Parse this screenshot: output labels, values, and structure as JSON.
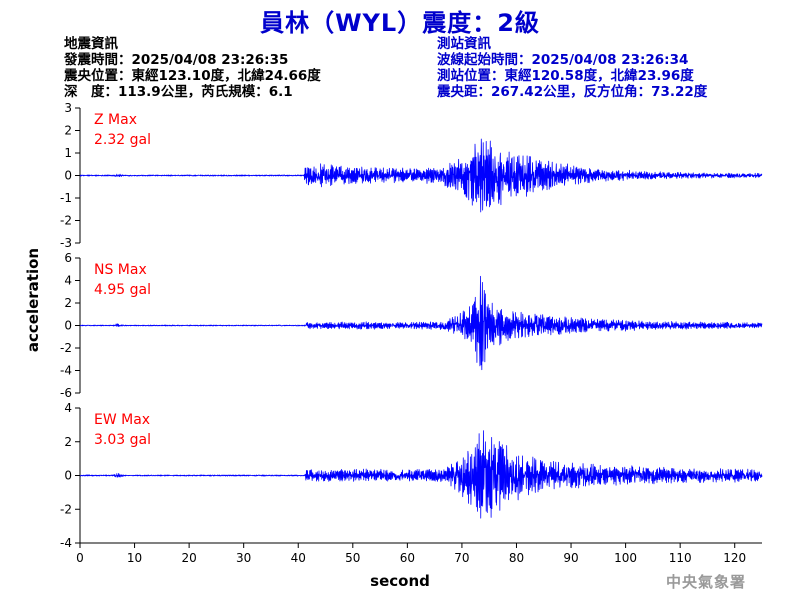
{
  "title": "員林（WYL）震度：2級",
  "quake_info": {
    "heading": "地震資訊",
    "time": "發震時間：2025/04/08 23:26:35",
    "location": "震央位置：東經123.10度，北緯24.66度",
    "depth": "深　度：113.9公里，芮氏規模：6.1"
  },
  "station_info": {
    "heading": "測站資訊",
    "start_time": "波線起始時間：2025/04/08 23:26:34",
    "location": "測站位置：東經120.58度，北緯23.96度",
    "distance": "震央距：267.42公里，反方位角：73.22度"
  },
  "footer": "中央氣象署",
  "colors": {
    "title": "#0000cc",
    "trace": "#0000ff",
    "max_label": "#ff0000",
    "station_text": "#0000cc"
  },
  "chart_data": {
    "type": "line",
    "xlabel": "second",
    "ylabel": "acceleration",
    "xlim": [
      0,
      125
    ],
    "xticks": [
      0,
      10,
      20,
      30,
      40,
      50,
      60,
      70,
      80,
      90,
      100,
      110,
      120
    ],
    "panels": [
      {
        "name": "Z",
        "max_label": "Z Max",
        "max_value": "2.32 gal",
        "ylim": [
          -3,
          3
        ],
        "yticks": [
          -3,
          -2,
          -1,
          0,
          1,
          2,
          3
        ],
        "envelope": [
          [
            0,
            0.03
          ],
          [
            6,
            0.03
          ],
          [
            7,
            0.1
          ],
          [
            8,
            0.03
          ],
          [
            41,
            0.03
          ],
          [
            41.5,
            0.7
          ],
          [
            43,
            0.55
          ],
          [
            48,
            0.45
          ],
          [
            55,
            0.35
          ],
          [
            62,
            0.35
          ],
          [
            66,
            0.4
          ],
          [
            70,
            0.8
          ],
          [
            72,
            1.4
          ],
          [
            74,
            1.9
          ],
          [
            76,
            1.6
          ],
          [
            79,
            1.2
          ],
          [
            84,
            0.8
          ],
          [
            88,
            0.6
          ],
          [
            95,
            0.3
          ],
          [
            105,
            0.18
          ],
          [
            115,
            0.12
          ],
          [
            125,
            0.1
          ]
        ]
      },
      {
        "name": "NS",
        "max_label": "NS Max",
        "max_value": "4.95 gal",
        "ylim": [
          -6,
          6
        ],
        "yticks": [
          -6,
          -4,
          -2,
          0,
          2,
          4,
          6
        ],
        "envelope": [
          [
            0,
            0.05
          ],
          [
            6,
            0.05
          ],
          [
            7,
            0.2
          ],
          [
            8,
            0.05
          ],
          [
            41,
            0.05
          ],
          [
            41.5,
            0.3
          ],
          [
            50,
            0.35
          ],
          [
            60,
            0.3
          ],
          [
            67,
            0.4
          ],
          [
            70,
            1.2
          ],
          [
            72,
            2.2
          ],
          [
            73.5,
            4.9
          ],
          [
            75,
            2.6
          ],
          [
            78,
            1.5
          ],
          [
            84,
            1.0
          ],
          [
            90,
            0.8
          ],
          [
            100,
            0.5
          ],
          [
            110,
            0.35
          ],
          [
            125,
            0.25
          ]
        ]
      },
      {
        "name": "EW",
        "max_label": "EW Max",
        "max_value": "3.03 gal",
        "ylim": [
          -4,
          4
        ],
        "yticks": [
          -4,
          -2,
          0,
          2,
          4
        ],
        "envelope": [
          [
            0,
            0.04
          ],
          [
            6,
            0.04
          ],
          [
            7,
            0.15
          ],
          [
            8,
            0.04
          ],
          [
            41,
            0.04
          ],
          [
            41.5,
            0.35
          ],
          [
            50,
            0.4
          ],
          [
            60,
            0.35
          ],
          [
            67,
            0.45
          ],
          [
            70,
            1.3
          ],
          [
            72,
            2.4
          ],
          [
            74,
            2.9
          ],
          [
            76,
            2.4
          ],
          [
            79,
            1.6
          ],
          [
            84,
            1.1
          ],
          [
            90,
            0.8
          ],
          [
            100,
            0.6
          ],
          [
            110,
            0.45
          ],
          [
            125,
            0.4
          ]
        ]
      }
    ]
  }
}
